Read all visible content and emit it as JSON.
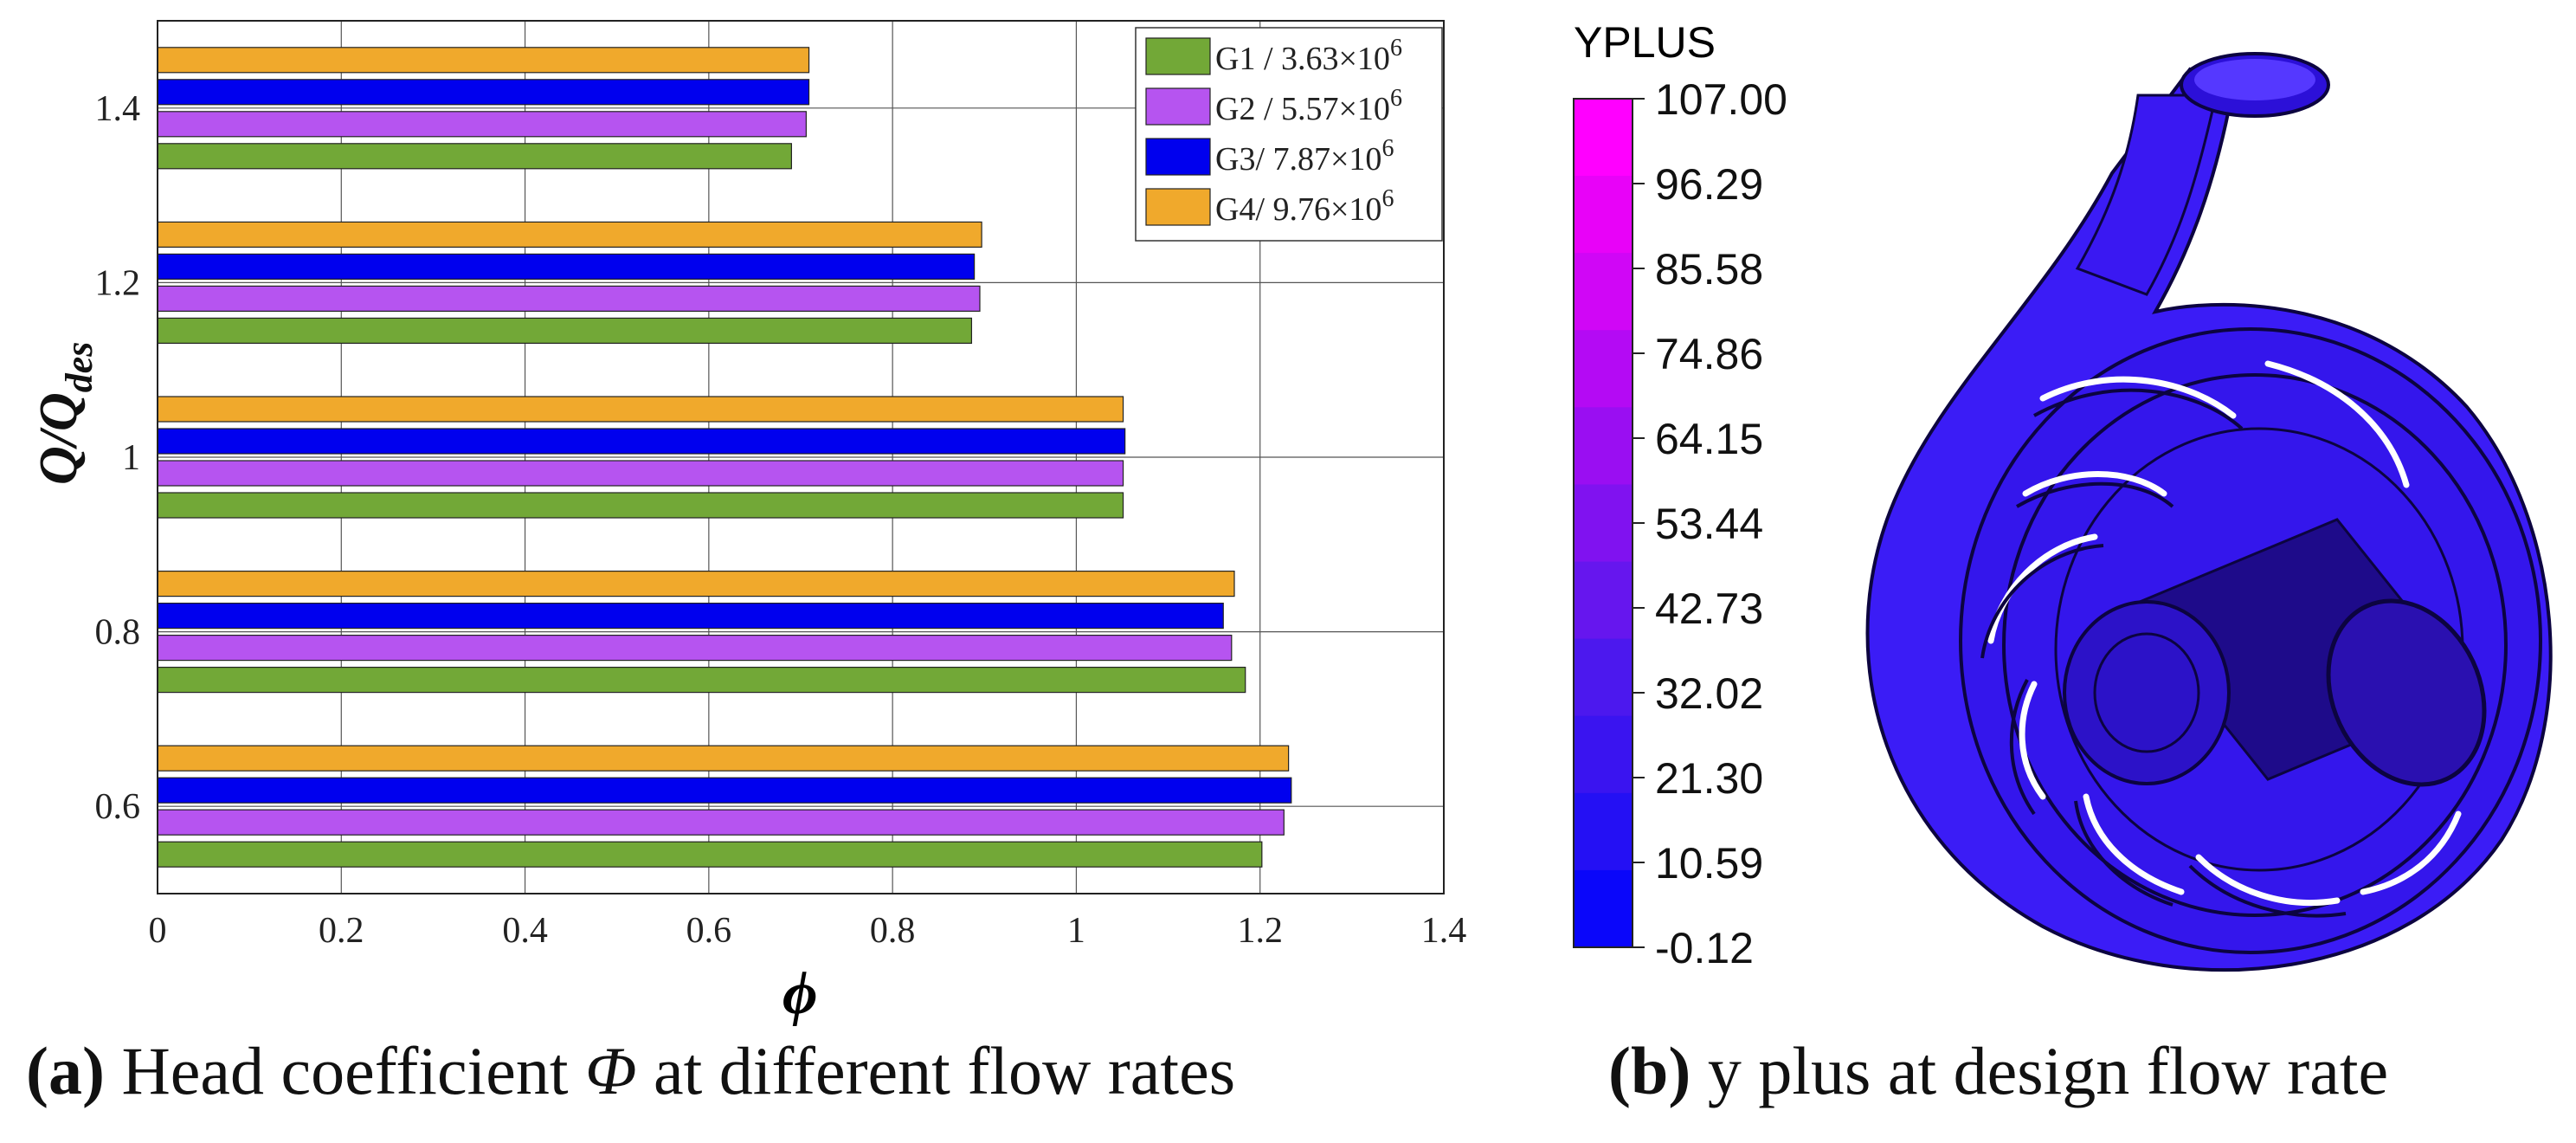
{
  "chart_data": [
    {
      "type": "bar",
      "orientation": "horizontal",
      "categories": [
        "0.6",
        "0.8",
        "1",
        "1.2",
        "1.4"
      ],
      "series": [
        {
          "name": "G1",
          "legend": "G1 / 3.63×10",
          "exp": "6",
          "color": "#72a837",
          "values": [
            1.202,
            1.184,
            1.051,
            0.886,
            0.69
          ]
        },
        {
          "name": "G2",
          "legend": "G2 / 5.57×10",
          "exp": "6",
          "color": "#b654f0",
          "values": [
            1.226,
            1.169,
            1.051,
            0.895,
            0.706
          ]
        },
        {
          "name": "G3",
          "legend": "G3/ 7.87×10",
          "exp": "6",
          "color": "#0000ee",
          "values": [
            1.234,
            1.16,
            1.053,
            0.889,
            0.709
          ]
        },
        {
          "name": "G4",
          "legend": "G4/ 9.76×10",
          "exp": "6",
          "color": "#f0a92c",
          "values": [
            1.231,
            1.172,
            1.051,
            0.897,
            0.709
          ]
        }
      ],
      "xlabel": "ϕ",
      "ylabel": "Q/Q",
      "ylabel_sub": "des",
      "xlim": [
        0,
        1.4
      ],
      "xticks": [
        "0",
        "0.2",
        "0.4",
        "0.6",
        "0.8",
        "1",
        "1.2",
        "1.4"
      ],
      "grid": true,
      "legend_position": "top-right"
    },
    {
      "type": "colorbar",
      "title": "YPLUS",
      "tick_labels": [
        "107.00",
        "96.29",
        "85.58",
        "74.86",
        "64.15",
        "53.44",
        "42.73",
        "32.02",
        "21.30",
        "10.59",
        "-0.12"
      ],
      "colors_top_to_bottom": [
        "#ff00ff",
        "#e802f8",
        "#d006f6",
        "#b40af4",
        "#9a0ef2",
        "#8012f0",
        "#6616ee",
        "#4c18ee",
        "#3a14f0",
        "#2410f4",
        "#0a06fa"
      ]
    }
  ],
  "captions": {
    "a_label": "(a)",
    "a_text": " Head coefficient ",
    "a_symbol": "Φ",
    "a_rest": " at different flow rates",
    "b_label": "(b)",
    "b_text": " y plus at design flow rate"
  },
  "pump_colors": {
    "body": "#3b1cf6",
    "dark": "#1e0b8a",
    "edge": "#0c0440",
    "highlight": "#7a5cff"
  }
}
